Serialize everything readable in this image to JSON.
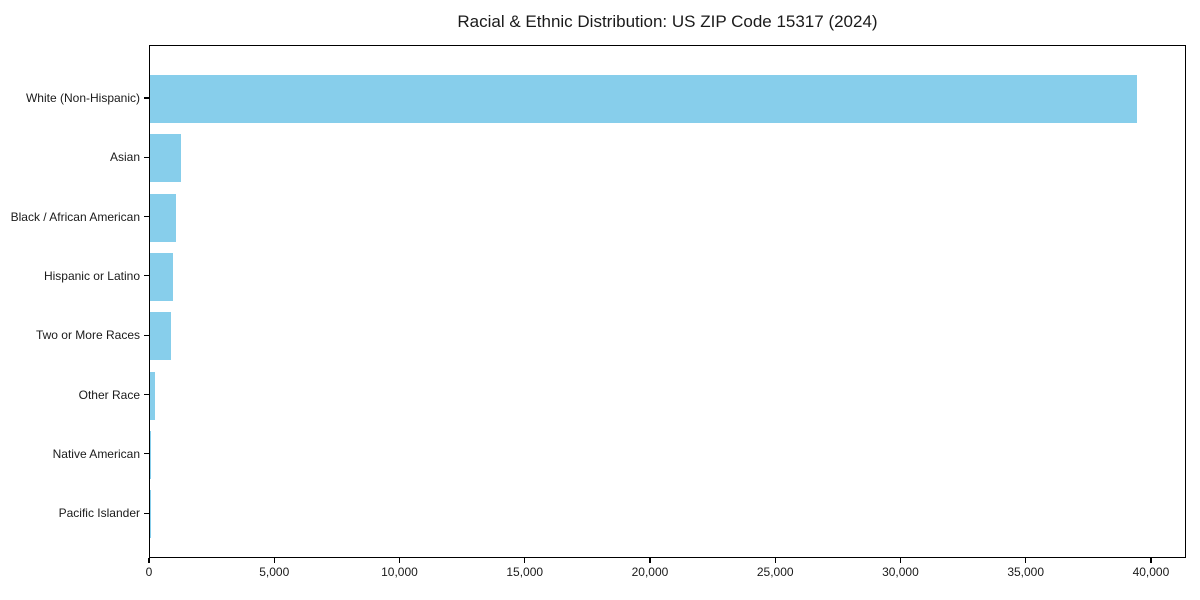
{
  "title": "Racial & Ethnic Distribution: US ZIP Code 15317 (2024)",
  "colors": {
    "bar": "#87CEEB",
    "text": "#1a1a1a",
    "spine": "#000000",
    "background": "#ffffff"
  },
  "chart_data": {
    "type": "bar",
    "orientation": "horizontal",
    "title": "Racial & Ethnic Distribution: US ZIP Code 15317 (2024)",
    "categories": [
      "White (Non-Hispanic)",
      "Asian",
      "Black / African American",
      "Hispanic or Latino",
      "Two or More Races",
      "Other Race",
      "Native American",
      "Pacific Islander"
    ],
    "values": [
      39400,
      1240,
      1020,
      920,
      840,
      180,
      30,
      10
    ],
    "xlabel": "",
    "ylabel": "",
    "xlim": [
      0,
      41400
    ],
    "x_ticks": [
      0,
      5000,
      10000,
      15000,
      20000,
      25000,
      30000,
      35000,
      40000
    ],
    "x_tick_labels": [
      "0",
      "5,000",
      "10,000",
      "15,000",
      "20,000",
      "25,000",
      "30,000",
      "35,000",
      "40,000"
    ],
    "bar_color": "#87CEEB",
    "grid": false,
    "legend": null
  }
}
